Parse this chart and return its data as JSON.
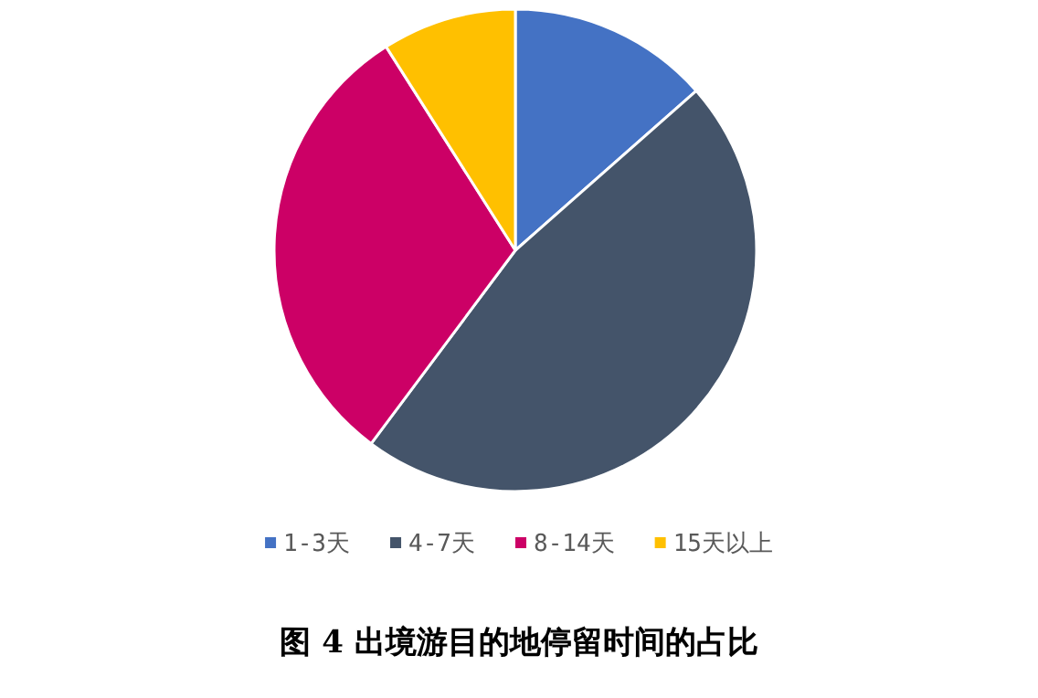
{
  "chart_data": {
    "type": "pie",
    "title": "图 4 出境游目的地停留时间的占比",
    "categories": [
      "1-3天",
      "4-7天",
      "8-14天",
      "15天以上"
    ],
    "values": [
      13.5,
      46.7,
      30.8,
      9.0
    ],
    "colors": [
      "#4472c4",
      "#44546a",
      "#cc0066",
      "#ffc000"
    ],
    "legend": "bottom"
  }
}
